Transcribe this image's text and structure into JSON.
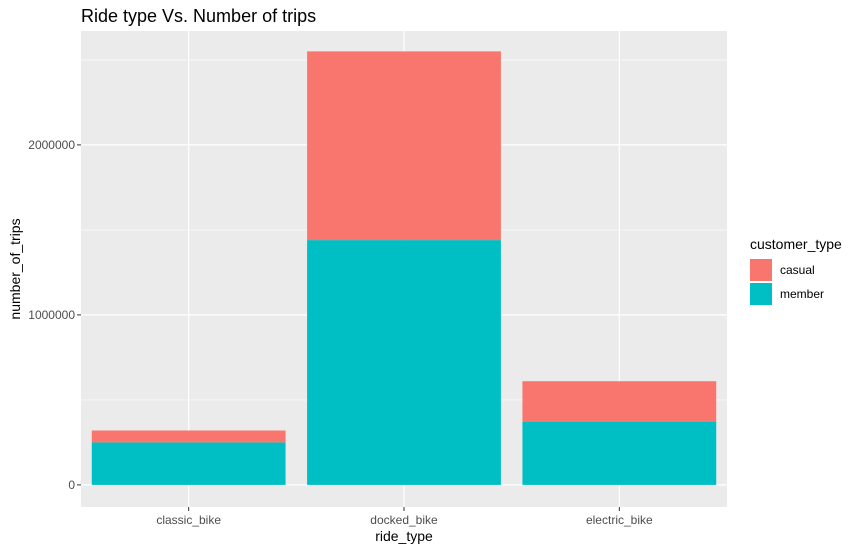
{
  "chart_data": {
    "type": "bar",
    "stacked": true,
    "title": "Ride type Vs. Number of trips",
    "xlabel": "ride_type",
    "ylabel": "number_of_trips",
    "categories": [
      "classic_bike",
      "docked_bike",
      "electric_bike"
    ],
    "series": [
      {
        "name": "member",
        "color": "#00BFC4",
        "values": [
          250000,
          1440000,
          370000
        ]
      },
      {
        "name": "casual",
        "color": "#F8766D",
        "values": [
          70000,
          1110000,
          240000
        ]
      }
    ],
    "ylim": [
      -130000,
      2670000
    ],
    "y_ticks": [
      {
        "value": 0,
        "label": "0"
      },
      {
        "value": 1000000,
        "label": "1000000"
      },
      {
        "value": 2000000,
        "label": "2000000"
      }
    ],
    "y_minor_ticks": [
      500000,
      1500000,
      2500000
    ],
    "grid": true,
    "panel_background": "#EBEBEB",
    "grid_color": "#FFFFFF",
    "legend": {
      "title": "customer_type",
      "position": "right",
      "entries": [
        {
          "label": "casual",
          "color": "#F8766D"
        },
        {
          "label": "member",
          "color": "#00BFC4"
        }
      ]
    }
  }
}
